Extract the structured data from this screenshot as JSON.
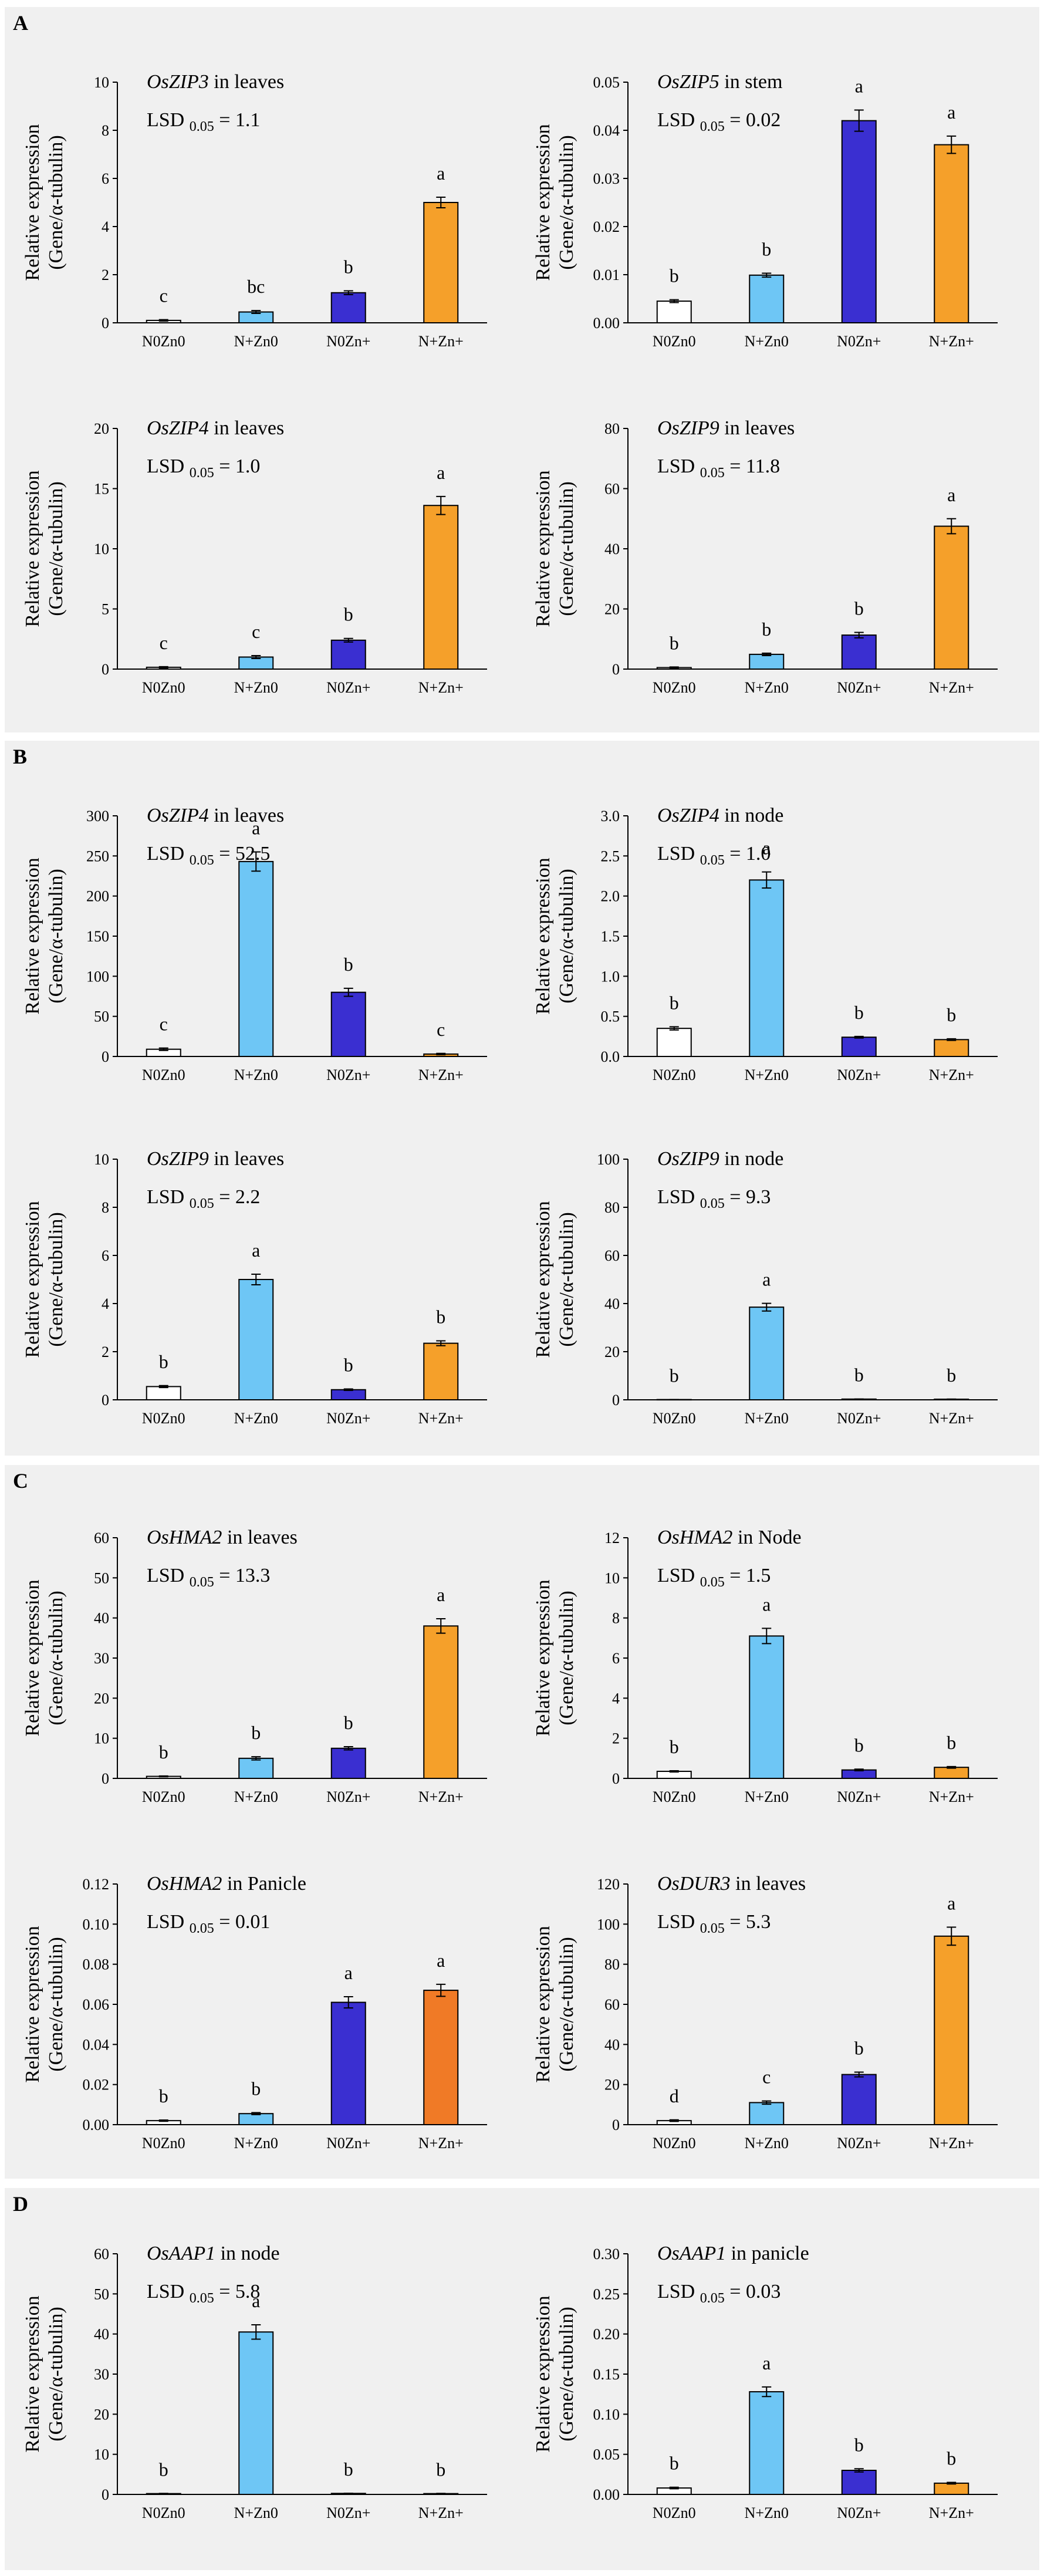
{
  "panels": [
    {
      "letter": "A"
    },
    {
      "letter": "B"
    },
    {
      "letter": "C"
    },
    {
      "letter": "D"
    }
  ],
  "colors": {
    "N0Zn0": "#ffffff",
    "N+Zn0": "#6ec6f5",
    "N0Zn+": "#3a2fd1",
    "N+Zn+": "#f5a02a",
    "N+Zn+_alt": "#f07a26",
    "axis": "#000000"
  },
  "chart_data": [
    {
      "type": "bar",
      "panel": "A",
      "gene": "OsZIP3",
      "tissue": " in leaves",
      "lsd_value": "1.1",
      "ylabel": [
        "Relative expression",
        "(Gene/α-tubulin)"
      ],
      "categories": [
        "N0Zn0",
        "N+Zn0",
        "N0Zn+",
        "N+Zn+"
      ],
      "values": [
        0.1,
        0.45,
        1.25,
        5.0
      ],
      "errors": [
        0.03,
        0.06,
        0.08,
        0.22
      ],
      "letters": [
        "c",
        "bc",
        "b",
        "a"
      ],
      "ylim": [
        0,
        10
      ],
      "yticks": [
        "0",
        "2",
        "4",
        "6",
        "8",
        "10"
      ]
    },
    {
      "type": "bar",
      "panel": "A",
      "gene": "OsZIP5",
      "tissue": " in stem",
      "lsd_value": "0.02",
      "ylabel": [
        "Relative expression",
        "(Gene/α-tubulin)"
      ],
      "categories": [
        "N0Zn0",
        "N+Zn0",
        "N0Zn+",
        "N+Zn+"
      ],
      "values": [
        0.0045,
        0.0099,
        0.042,
        0.037
      ],
      "errors": [
        0.0003,
        0.0004,
        0.0022,
        0.0018
      ],
      "letters": [
        "b",
        "b",
        "a",
        "a"
      ],
      "ylim": [
        0,
        0.05
      ],
      "yticks": [
        "0.00",
        "0.01",
        "0.02",
        "0.03",
        "0.04",
        "0.05"
      ]
    },
    {
      "type": "bar",
      "panel": "A",
      "gene": "OsZIP4",
      "tissue": " in leaves",
      "lsd_value": "1.0",
      "ylabel": [
        "Relative expression",
        "(Gene/α-tubulin)"
      ],
      "categories": [
        "N0Zn0",
        "N+Zn0",
        "N0Zn+",
        "N+Zn+"
      ],
      "values": [
        0.15,
        1.0,
        2.4,
        13.6
      ],
      "errors": [
        0.05,
        0.12,
        0.15,
        0.75
      ],
      "letters": [
        "c",
        "c",
        "b",
        "a"
      ],
      "ylim": [
        0,
        20
      ],
      "yticks": [
        "0",
        "5",
        "10",
        "15",
        "20"
      ]
    },
    {
      "type": "bar",
      "panel": "A",
      "gene": "OsZIP9",
      "tissue": " in leaves",
      "lsd_value": "11.8",
      "ylabel": [
        "Relative expression",
        "(Gene/α-tubulin)"
      ],
      "categories": [
        "N0Zn0",
        "N+Zn0",
        "N0Zn+",
        "N+Zn+"
      ],
      "values": [
        0.5,
        4.9,
        11.3,
        47.5
      ],
      "errors": [
        0.2,
        0.4,
        0.9,
        2.5
      ],
      "letters": [
        "b",
        "b",
        "b",
        "a"
      ],
      "ylim": [
        0,
        80
      ],
      "yticks": [
        "0",
        "20",
        "40",
        "60",
        "80"
      ]
    },
    {
      "type": "bar",
      "panel": "B",
      "gene": "OsZIP4",
      "tissue": " in leaves",
      "lsd_value": "52.5",
      "ylabel": [
        "Relative expression",
        "(Gene/α-tubulin)"
      ],
      "categories": [
        "N0Zn0",
        "N+Zn0",
        "N0Zn+",
        "N+Zn+"
      ],
      "values": [
        9,
        243,
        80,
        3
      ],
      "errors": [
        1.5,
        12,
        5,
        0.8
      ],
      "letters": [
        "c",
        "a",
        "b",
        "c"
      ],
      "ylim": [
        0,
        300
      ],
      "yticks": [
        "0",
        "50",
        "100",
        "150",
        "200",
        "250",
        "300"
      ]
    },
    {
      "type": "bar",
      "panel": "B",
      "gene": "OsZIP4",
      "tissue": " in node",
      "lsd_value": "1.0",
      "ylabel": [
        "Relative expression",
        "(Gene/α-tubulin)"
      ],
      "categories": [
        "N0Zn0",
        "N+Zn0",
        "N0Zn+",
        "N+Zn+"
      ],
      "values": [
        0.35,
        2.2,
        0.24,
        0.21
      ],
      "errors": [
        0.02,
        0.1,
        0.01,
        0.01
      ],
      "letters": [
        "b",
        "a",
        "b",
        "b"
      ],
      "ylim": [
        0,
        3
      ],
      "yticks": [
        "0.0",
        "0.5",
        "1.0",
        "1.5",
        "2.0",
        "2.5",
        "3.0"
      ]
    },
    {
      "type": "bar",
      "panel": "B",
      "gene": "OsZIP9",
      "tissue": " in leaves",
      "lsd_value": "2.2",
      "ylabel": [
        "Relative expression",
        "(Gene/α-tubulin)"
      ],
      "categories": [
        "N0Zn0",
        "N+Zn0",
        "N0Zn+",
        "N+Zn+"
      ],
      "values": [
        0.55,
        5.0,
        0.42,
        2.35
      ],
      "errors": [
        0.04,
        0.22,
        0.03,
        0.1
      ],
      "letters": [
        "b",
        "a",
        "b",
        "b"
      ],
      "ylim": [
        0,
        10
      ],
      "yticks": [
        "0",
        "2",
        "4",
        "6",
        "8",
        "10"
      ]
    },
    {
      "type": "bar",
      "panel": "B",
      "gene": "OsZIP9",
      "tissue": " in node",
      "lsd_value": "9.3",
      "ylabel": [
        "Relative expression",
        "(Gene/α-tubulin)"
      ],
      "categories": [
        "N0Zn0",
        "N+Zn0",
        "N0Zn+",
        "N+Zn+"
      ],
      "values": [
        0.1,
        38.5,
        0.3,
        0.25
      ],
      "errors": [
        0.02,
        1.6,
        0.05,
        0.04
      ],
      "letters": [
        "b",
        "a",
        "b",
        "b"
      ],
      "ylim": [
        0,
        100
      ],
      "yticks": [
        "0",
        "20",
        "40",
        "60",
        "80",
        "100"
      ]
    },
    {
      "type": "bar",
      "panel": "C",
      "gene": "OsHMA2",
      "tissue": " in leaves",
      "lsd_value": "13.3",
      "ylabel": [
        "Relative expression",
        "(Gene/α-tubulin)"
      ],
      "categories": [
        "N0Zn0",
        "N+Zn0",
        "N0Zn+",
        "N+Zn+"
      ],
      "values": [
        0.5,
        5.0,
        7.5,
        38.0
      ],
      "errors": [
        0.1,
        0.4,
        0.4,
        1.8
      ],
      "letters": [
        "b",
        "b",
        "b",
        "a"
      ],
      "ylim": [
        0,
        60
      ],
      "yticks": [
        "0",
        "10",
        "20",
        "30",
        "40",
        "50",
        "60"
      ]
    },
    {
      "type": "bar",
      "panel": "C",
      "gene": "OsHMA2",
      "tissue": " in Node",
      "lsd_value": "1.5",
      "ylabel": [
        "Relative expression",
        "(Gene/α-tubulin)"
      ],
      "categories": [
        "N0Zn0",
        "N+Zn0",
        "N0Zn+",
        "N+Zn+"
      ],
      "values": [
        0.35,
        7.1,
        0.42,
        0.55
      ],
      "errors": [
        0.03,
        0.38,
        0.04,
        0.04
      ],
      "letters": [
        "b",
        "a",
        "b",
        "b"
      ],
      "ylim": [
        0,
        12
      ],
      "yticks": [
        "0",
        "2",
        "4",
        "6",
        "8",
        "10",
        "12"
      ]
    },
    {
      "type": "bar",
      "panel": "C",
      "gene": "OsHMA2",
      "tissue": " in Panicle",
      "lsd_value": "0.01",
      "ylabel": [
        "Relative expression",
        "(Gene/α-tubulin)"
      ],
      "categories": [
        "N0Zn0",
        "N+Zn0",
        "N0Zn+",
        "N+Zn+"
      ],
      "values": [
        0.002,
        0.0055,
        0.061,
        0.067
      ],
      "errors": [
        0.0003,
        0.0005,
        0.0028,
        0.003
      ],
      "letters": [
        "b",
        "b",
        "a",
        "a"
      ],
      "ylim": [
        0,
        0.12
      ],
      "yticks": [
        "0.00",
        "0.02",
        "0.04",
        "0.06",
        "0.08",
        "0.10",
        "0.12"
      ],
      "alt_orange": true
    },
    {
      "type": "bar",
      "panel": "C",
      "gene": "OsDUR3",
      "tissue": " in leaves",
      "lsd_value": "5.3",
      "ylabel": [
        "Relative expression",
        "(Gene/α-tubulin)"
      ],
      "categories": [
        "N0Zn0",
        "N+Zn0",
        "N0Zn+",
        "N+Zn+"
      ],
      "values": [
        2,
        11,
        25,
        94
      ],
      "errors": [
        0.4,
        0.8,
        1.2,
        4.5
      ],
      "letters": [
        "d",
        "c",
        "b",
        "a"
      ],
      "ylim": [
        0,
        120
      ],
      "yticks": [
        "0",
        "20",
        "40",
        "60",
        "80",
        "100",
        "120"
      ]
    },
    {
      "type": "bar",
      "panel": "D",
      "gene": "OsAAP1",
      "tissue": "  in node",
      "lsd_value": "5.8",
      "ylabel": [
        "Relative expression",
        "(Gene/α-tubulin)"
      ],
      "categories": [
        "N0Zn0",
        "N+Zn0",
        "N0Zn+",
        "N+Zn+"
      ],
      "values": [
        0.2,
        40.5,
        0.25,
        0.2
      ],
      "errors": [
        0.05,
        1.8,
        0.05,
        0.05
      ],
      "letters": [
        "b",
        "a",
        "b",
        "b"
      ],
      "ylim": [
        0,
        60
      ],
      "yticks": [
        "0",
        "10",
        "20",
        "30",
        "40",
        "50",
        "60"
      ]
    },
    {
      "type": "bar",
      "panel": "D",
      "gene": "OsAAP1",
      "tissue": "  in panicle",
      "lsd_value": "0.03",
      "ylabel": [
        "Relative expression",
        "(Gene/α-tubulin)"
      ],
      "categories": [
        "N0Zn0",
        "N+Zn0",
        "N0Zn+",
        "N+Zn+"
      ],
      "values": [
        0.008,
        0.128,
        0.03,
        0.014
      ],
      "errors": [
        0.001,
        0.006,
        0.002,
        0.001
      ],
      "letters": [
        "b",
        "a",
        "b",
        "b"
      ],
      "ylim": [
        0,
        0.3
      ],
      "yticks": [
        "0.00",
        "0.05",
        "0.10",
        "0.15",
        "0.20",
        "0.25",
        "0.30"
      ]
    }
  ]
}
